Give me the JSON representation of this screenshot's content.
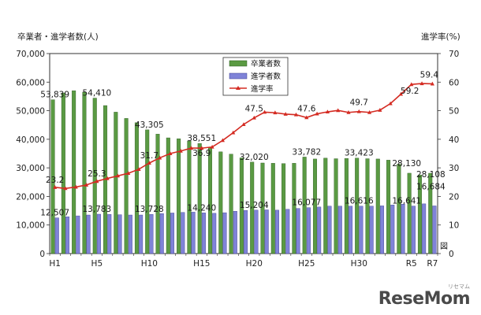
{
  "chart_data": {
    "type": "bar",
    "title": "",
    "ylabel_left": "卒業者・進学者数(人)",
    "ylabel_right": "進学率(%)",
    "ylim_left": [
      0,
      70000
    ],
    "ylim_right": [
      0,
      70
    ],
    "yticks_left": [
      "0",
      "10,000",
      "20,000",
      "30,000",
      "40,000",
      "50,000",
      "60,000",
      "70,000"
    ],
    "yticks_right": [
      "0",
      "10",
      "20",
      "30",
      "40",
      "50",
      "60",
      "70"
    ],
    "categories": [
      "H1",
      "H2",
      "H3",
      "H4",
      "H5",
      "H6",
      "H7",
      "H8",
      "H9",
      "H10",
      "H11",
      "H12",
      "H13",
      "H14",
      "H15",
      "H16",
      "H17",
      "H18",
      "H19",
      "H20",
      "H21",
      "H22",
      "H23",
      "H24",
      "H25",
      "H26",
      "H27",
      "H28",
      "H29",
      "H30",
      "R1",
      "R2",
      "R3",
      "R4",
      "R5",
      "R6",
      "R7"
    ],
    "x_tick_labels": [
      {
        "index": 0,
        "label": "H1"
      },
      {
        "index": 4,
        "label": "H5"
      },
      {
        "index": 9,
        "label": "H10"
      },
      {
        "index": 14,
        "label": "H15"
      },
      {
        "index": 19,
        "label": "H20"
      },
      {
        "index": 24,
        "label": "H25"
      },
      {
        "index": 29,
        "label": "H30"
      },
      {
        "index": 34,
        "label": "R5"
      },
      {
        "index": 36,
        "label": "R7"
      }
    ],
    "series": [
      {
        "name": "卒業者数",
        "type": "bar",
        "color": "#5a9a43",
        "values": [
          53839,
          56200,
          57000,
          56500,
          54410,
          51800,
          49500,
          47300,
          45800,
          43305,
          41800,
          40500,
          40200,
          39400,
          38551,
          37200,
          35600,
          34800,
          33500,
          32020,
          31700,
          31600,
          31500,
          31600,
          33782,
          33100,
          33400,
          33200,
          33300,
          33423,
          33200,
          33100,
          32700,
          31300,
          28130,
          27500,
          28108
        ]
      },
      {
        "name": "進学者数",
        "type": "bar",
        "color": "#7f83d8",
        "values": [
          12507,
          12900,
          13200,
          13500,
          13783,
          13700,
          13600,
          13500,
          13500,
          13728,
          14000,
          14200,
          14400,
          14500,
          14240,
          14100,
          14300,
          14800,
          15100,
          15204,
          15300,
          15200,
          15500,
          15800,
          16077,
          16300,
          16600,
          16600,
          16600,
          16616,
          16600,
          16700,
          17000,
          17300,
          16641,
          17400,
          16684
        ]
      },
      {
        "name": "進学率",
        "type": "line",
        "color": "#d42b22",
        "axis": "right",
        "values": [
          23.2,
          22.8,
          23.3,
          24.0,
          25.3,
          26.3,
          27.2,
          28.1,
          29.5,
          31.7,
          33.5,
          35.0,
          35.9,
          36.9,
          36.9,
          37.3,
          39.6,
          42.3,
          45.2,
          47.5,
          49.5,
          49.3,
          48.8,
          48.6,
          47.6,
          48.9,
          49.6,
          50.1,
          49.4,
          49.7,
          49.4,
          50.2,
          52.5,
          55.8,
          59.2,
          59.5,
          59.4
        ]
      }
    ],
    "data_labels": {
      "卒業者数": [
        {
          "index": 0,
          "text": "53,839"
        },
        {
          "index": 4,
          "text": "54,410"
        },
        {
          "index": 9,
          "text": "43,305"
        },
        {
          "index": 14,
          "text": "38,551"
        },
        {
          "index": 19,
          "text": "32,020"
        },
        {
          "index": 24,
          "text": "33,782"
        },
        {
          "index": 29,
          "text": "33,423"
        },
        {
          "index": 34,
          "text": "28,130"
        },
        {
          "index": 36,
          "text": "28,108"
        }
      ],
      "進学者数": [
        {
          "index": 0,
          "text": "12,507"
        },
        {
          "index": 4,
          "text": "13,783"
        },
        {
          "index": 9,
          "text": "13,728"
        },
        {
          "index": 14,
          "text": "14,240"
        },
        {
          "index": 19,
          "text": "15,204"
        },
        {
          "index": 24,
          "text": "16,077"
        },
        {
          "index": 29,
          "text": "16,616"
        },
        {
          "index": 34,
          "text": "16,641"
        },
        {
          "index": 36,
          "text": "16,684"
        }
      ],
      "進学率": [
        {
          "index": 0,
          "text": "23.2"
        },
        {
          "index": 4,
          "text": "25.3"
        },
        {
          "index": 9,
          "text": "31.7"
        },
        {
          "index": 14,
          "text": "36.9"
        },
        {
          "index": 19,
          "text": "47.5"
        },
        {
          "index": 24,
          "text": "47.6"
        },
        {
          "index": 29,
          "text": "49.7"
        },
        {
          "index": 34,
          "text": "59.2"
        },
        {
          "index": 36,
          "text": "59.4"
        }
      ]
    },
    "legend": {
      "position": "top-center",
      "entries": [
        "卒業者数",
        "進学者数",
        "進学率"
      ]
    },
    "figure_tag": "図",
    "grid": false
  },
  "watermark": {
    "text": "ReseMom",
    "sub": "リセマム"
  }
}
